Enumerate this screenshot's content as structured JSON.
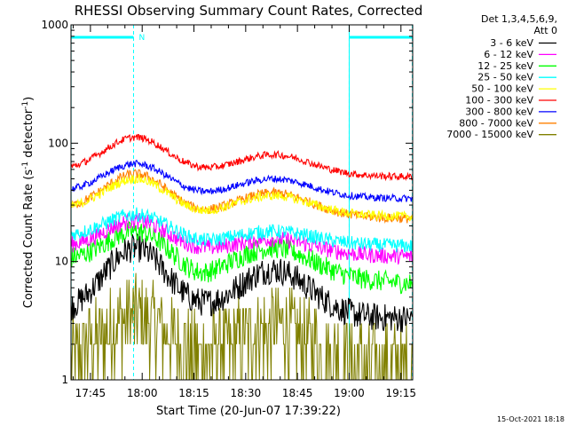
{
  "chart_data": {
    "type": "line",
    "title": "RHESSI Observing Summary Count Rates, Corrected",
    "xlabel": "Start Time (20-Jun-07 17:39:22)",
    "ylabel_main": "Corrected Count Rate (s",
    "ylabel_sup1": "-1",
    "ylabel_mid": " detector",
    "ylabel_sup2": "-1",
    "ylabel_end": ")",
    "yscale": "log",
    "ylim": [
      1,
      1000
    ],
    "yticks": [
      {
        "value": 1,
        "label": "1"
      },
      {
        "value": 10,
        "label": "10"
      },
      {
        "value": 100,
        "label": "100"
      },
      {
        "value": 1000,
        "label": "1000"
      }
    ],
    "xlim_minutes": [
      39.37,
      138.4
    ],
    "xticks": [
      {
        "minute": 45,
        "label": "17:45"
      },
      {
        "minute": 60,
        "label": "18:00"
      },
      {
        "minute": 75,
        "label": "18:15"
      },
      {
        "minute": 90,
        "label": "18:30"
      },
      {
        "minute": 105,
        "label": "18:45"
      },
      {
        "minute": 120,
        "label": "19:00"
      },
      {
        "minute": 135,
        "label": "19:15"
      }
    ],
    "legend_header": [
      "Det 1,3,4,5,6,9,",
      "Att 0"
    ],
    "legend_position": "right",
    "markers": {
      "night_bars": [
        [
          39.4,
          57.5
        ],
        [
          120.0,
          138.3
        ]
      ],
      "saa_vlines": [
        57.5,
        120.0,
        138.3
      ],
      "flag_label": "N"
    },
    "series": [
      {
        "name": "3 - 6 keV",
        "color": "#000000",
        "base": 3.5,
        "peak1": 13.0,
        "trough": 4.0,
        "peak2": 8.5,
        "end": 3.3,
        "noise": 0.12
      },
      {
        "name": "6 - 12 keV",
        "color": "#ff00ff",
        "base": 13.0,
        "peak1": 22.0,
        "trough": 12.0,
        "peak2": 15.5,
        "end": 11.0,
        "noise": 0.07
      },
      {
        "name": "12 - 25 keV",
        "color": "#00ff00",
        "base": 10.0,
        "peak1": 18.0,
        "trough": 7.0,
        "peak2": 13.0,
        "end": 6.5,
        "noise": 0.09
      },
      {
        "name": "25 - 50 keV",
        "color": "#00ffff",
        "base": 16.0,
        "peak1": 25.0,
        "trough": 14.0,
        "peak2": 18.0,
        "end": 13.5,
        "noise": 0.06
      },
      {
        "name": "50 - 100 keV",
        "color": "#ffff00",
        "base": 27.0,
        "peak1": 50.0,
        "trough": 24.0,
        "peak2": 36.0,
        "end": 24.0,
        "noise": 0.04
      },
      {
        "name": "100 - 300 keV",
        "color": "#ff0000",
        "base": 58.0,
        "peak1": 112.0,
        "trough": 55.0,
        "peak2": 80.0,
        "end": 52.0,
        "noise": 0.03
      },
      {
        "name": "300 - 800 keV",
        "color": "#0000ff",
        "base": 38.0,
        "peak1": 67.0,
        "trough": 35.0,
        "peak2": 50.0,
        "end": 34.0,
        "noise": 0.03
      },
      {
        "name": "800 - 7000 keV",
        "color": "#ff8000",
        "base": 27.0,
        "peak1": 55.0,
        "trough": 24.0,
        "peak2": 38.0,
        "end": 23.0,
        "noise": 0.04
      },
      {
        "name": "7000 - 15000 keV",
        "color": "#808000",
        "base": 1.4,
        "peak1": 3.5,
        "trough": 1.5,
        "peak2": 2.8,
        "end": 1.4,
        "noise": 0.35
      }
    ]
  },
  "footer_timestamp": "15-Oct-2021 18:18"
}
